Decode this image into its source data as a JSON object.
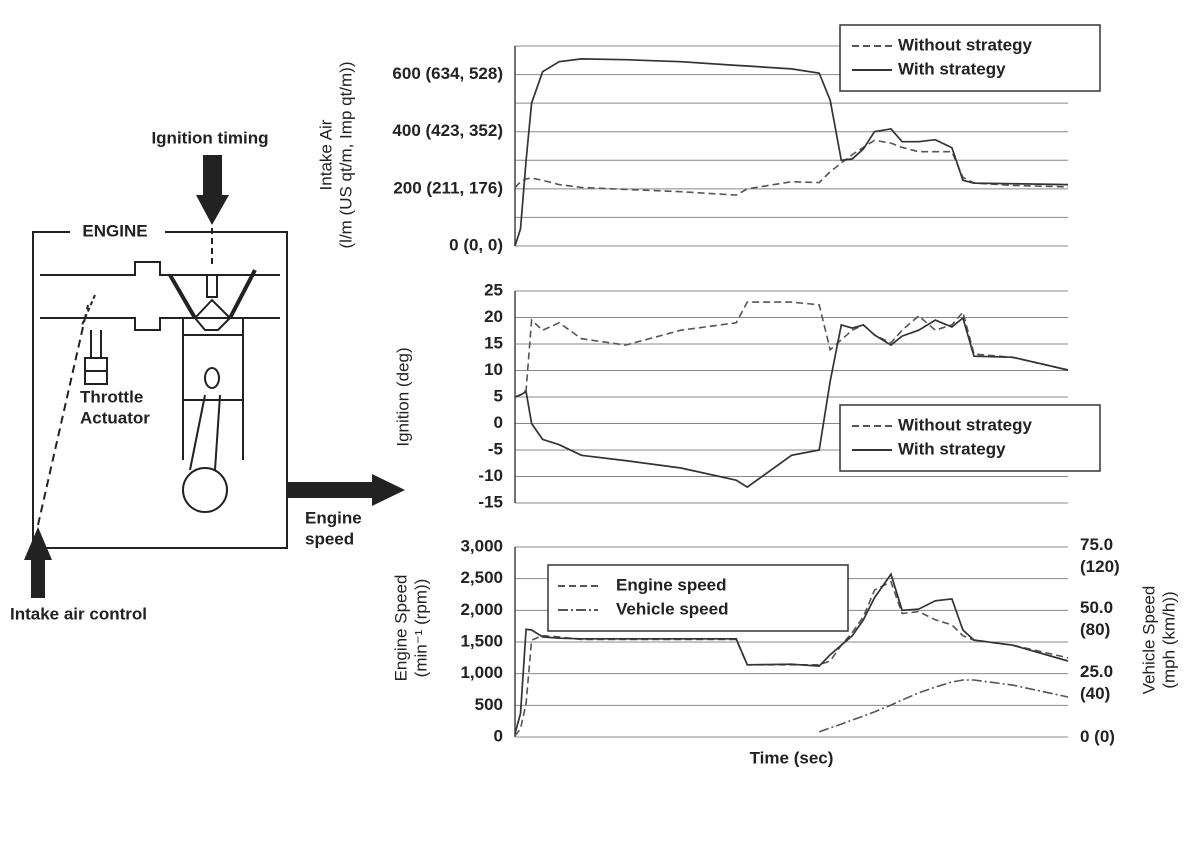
{
  "diagram": {
    "ignition_timing": "Ignition timing",
    "engine": "ENGINE",
    "throttle_actuator": [
      "Throttle",
      "Actuator"
    ],
    "engine_speed": [
      "Engine",
      "speed"
    ],
    "intake_air_control": "Intake air control"
  },
  "chart_data": [
    {
      "type": "line",
      "ylabel": [
        "Intake Air",
        "(l/m (US qt/m, Imp qt/m))"
      ],
      "x": [
        0,
        1,
        2,
        3,
        5,
        8,
        12,
        20,
        30,
        40,
        42,
        50,
        55,
        57,
        59,
        61,
        63,
        65,
        68,
        70,
        73,
        76,
        79,
        81,
        83,
        90,
        100
      ],
      "xlim": [
        0,
        100
      ],
      "ylim": [
        0,
        700
      ],
      "yticks": [
        {
          "value": 0,
          "label": "0 (0, 0)"
        },
        {
          "value": 200,
          "label": "200 (211, 176)"
        },
        {
          "value": 400,
          "label": "400 (423, 352)"
        },
        {
          "value": 600,
          "label": "600 (634, 528)"
        }
      ],
      "minor_yticks": [
        100,
        300,
        500,
        700
      ],
      "grid": true,
      "legend": "upper right",
      "series": [
        {
          "name": "Without strategy",
          "color": "#555555",
          "linestyle": "dashed",
          "values": [
            204,
            225,
            235,
            238,
            230,
            215,
            205,
            198,
            190,
            178,
            200,
            225,
            222,
            260,
            290,
            320,
            345,
            370,
            360,
            345,
            330,
            330,
            330,
            240,
            220,
            212,
            207
          ]
        },
        {
          "name": "With strategy",
          "color": "#333333",
          "linestyle": "solid",
          "values": [
            0,
            60,
            300,
            500,
            610,
            645,
            655,
            652,
            645,
            632,
            630,
            620,
            605,
            510,
            300,
            305,
            340,
            400,
            410,
            365,
            365,
            372,
            344,
            230,
            220,
            218,
            215
          ]
        }
      ]
    },
    {
      "type": "line",
      "ylabel": [
        "Ignition (deg)"
      ],
      "x": [
        0,
        1,
        2,
        3,
        5,
        8,
        12,
        20,
        30,
        40,
        42,
        50,
        55,
        57,
        59,
        61,
        63,
        65,
        68,
        70,
        73,
        76,
        79,
        81,
        83,
        90,
        100
      ],
      "xlim": [
        0,
        100
      ],
      "ylim": [
        -15,
        25
      ],
      "yticks": [
        -15,
        -10,
        -5,
        0,
        5,
        10,
        15,
        20,
        25
      ],
      "grid": true,
      "legend": "center right",
      "series": [
        {
          "name": "Without strategy",
          "color": "#555555",
          "linestyle": "dashed",
          "values": [
            5,
            5.4,
            6.3,
            19.5,
            17.6,
            19,
            16,
            14.8,
            17.6,
            19,
            22.9,
            22.9,
            22.4,
            13.9,
            15.8,
            17.6,
            18.6,
            16.7,
            15.2,
            17.6,
            20.3,
            17.6,
            18.6,
            21,
            13.1,
            12.5,
            10.1
          ]
        },
        {
          "name": "With strategy",
          "color": "#333333",
          "linestyle": "solid",
          "values": [
            5,
            5.4,
            6,
            0,
            -3,
            -4,
            -6,
            -7,
            -8.4,
            -10.7,
            -12,
            -6,
            -5,
            8,
            18.6,
            18,
            18.6,
            16.7,
            14.8,
            16.5,
            17.6,
            19.5,
            18.2,
            19.9,
            12.7,
            12.5,
            10.1
          ]
        }
      ]
    },
    {
      "type": "line",
      "ylabel": [
        "Engine Speed",
        "(min⁻¹ (rpm))"
      ],
      "y2label": [
        "Vehicle Speed",
        "(mph (km/h))"
      ],
      "xlabel": "Time (sec)",
      "x": [
        0,
        1,
        2,
        3,
        5,
        8,
        12,
        20,
        30,
        40,
        42,
        50,
        55,
        57,
        59,
        61,
        63,
        65,
        68,
        70,
        73,
        76,
        79,
        81,
        83,
        90,
        100
      ],
      "xlim": [
        0,
        100
      ],
      "ylim": [
        0,
        3000
      ],
      "yticks": [
        0,
        500,
        {
          "value": 1000,
          "label": "1,000"
        },
        {
          "value": 1500,
          "label": "1,500"
        },
        {
          "value": 2000,
          "label": "2,000"
        },
        {
          "value": 2500,
          "label": "2,500"
        },
        {
          "value": 3000,
          "label": "3,000"
        }
      ],
      "y2lim": [
        0,
        75
      ],
      "y2ticks": [
        {
          "value": 0,
          "label": "0 (0)"
        },
        {
          "value": 25,
          "label": "25.0 (40)"
        },
        {
          "value": 50,
          "label": "50.0 (80)"
        },
        {
          "value": 75,
          "label": "75.0 (120)"
        }
      ],
      "grid": true,
      "legend": "upper left",
      "series": [
        {
          "name": "Engine speed",
          "color": "#555555",
          "linestyle": "dashed",
          "values": [
            20,
            130,
            530,
            1530,
            1600,
            1580,
            1540,
            1540,
            1540,
            1540,
            1140,
            1140,
            1140,
            1200,
            1450,
            1650,
            1900,
            2320,
            2450,
            1950,
            1980,
            1850,
            1770,
            1600,
            1530,
            1450,
            1250
          ]
        },
        {
          "name": "Vehicle speed",
          "color": "#555555",
          "linestyle": "dashdot",
          "axis": "y2",
          "values": [
            null,
            null,
            null,
            null,
            null,
            null,
            null,
            null,
            null,
            null,
            null,
            null,
            2,
            3.6,
            5.1,
            6.7,
            8.3,
            9.9,
            12.6,
            14.6,
            17.4,
            19.7,
            21.7,
            22.5,
            22.5,
            20.5,
            15.8
          ]
        },
        {
          "name": null,
          "color": "#333333",
          "linestyle": "solid",
          "values": [
            55,
            370,
            1700,
            1690,
            1580,
            1560,
            1550,
            1550,
            1550,
            1550,
            1140,
            1150,
            1120,
            1300,
            1450,
            1600,
            1850,
            2200,
            2570,
            2000,
            2020,
            2150,
            2180,
            1690,
            1530,
            1450,
            1200
          ]
        }
      ]
    }
  ]
}
